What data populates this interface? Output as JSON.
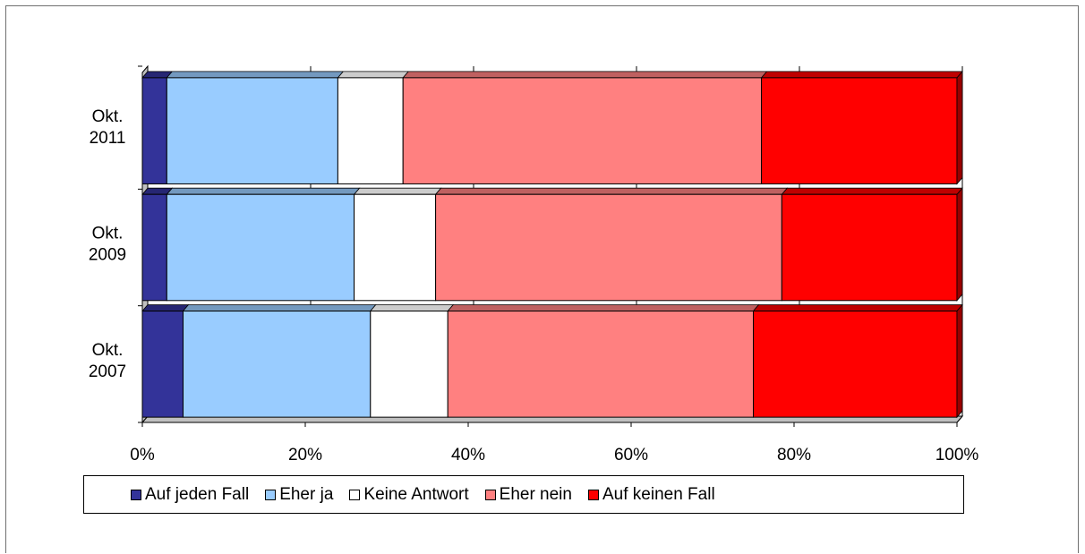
{
  "chart_data": {
    "type": "bar",
    "orientation": "horizontal",
    "stacked": "percent",
    "categories": [
      "Okt. 2011",
      "Okt. 2009",
      "Okt. 2007"
    ],
    "category_lines": [
      [
        "Okt.",
        "2011"
      ],
      [
        "Okt.",
        "2009"
      ],
      [
        "Okt.",
        "2007"
      ]
    ],
    "series": [
      {
        "name": "Auf jeden Fall",
        "color": "#333399",
        "values": [
          3,
          3,
          5
        ]
      },
      {
        "name": "Eher ja",
        "color": "#99ccff",
        "values": [
          21,
          23,
          23
        ]
      },
      {
        "name": "Keine Antwort",
        "color": "#ffffff",
        "values": [
          8,
          10,
          9.5
        ]
      },
      {
        "name": "Eher nein",
        "color": "#ff8080",
        "values": [
          44,
          42.5,
          37.5
        ]
      },
      {
        "name": "Auf keinen Fall",
        "color": "#ff0000",
        "values": [
          24,
          21.5,
          25
        ]
      }
    ],
    "xlim": [
      0,
      100
    ],
    "x_ticks": [
      "0%",
      "20%",
      "40%",
      "60%",
      "80%",
      "100%"
    ],
    "grid": true,
    "legend_position": "bottom",
    "three_d": true
  }
}
